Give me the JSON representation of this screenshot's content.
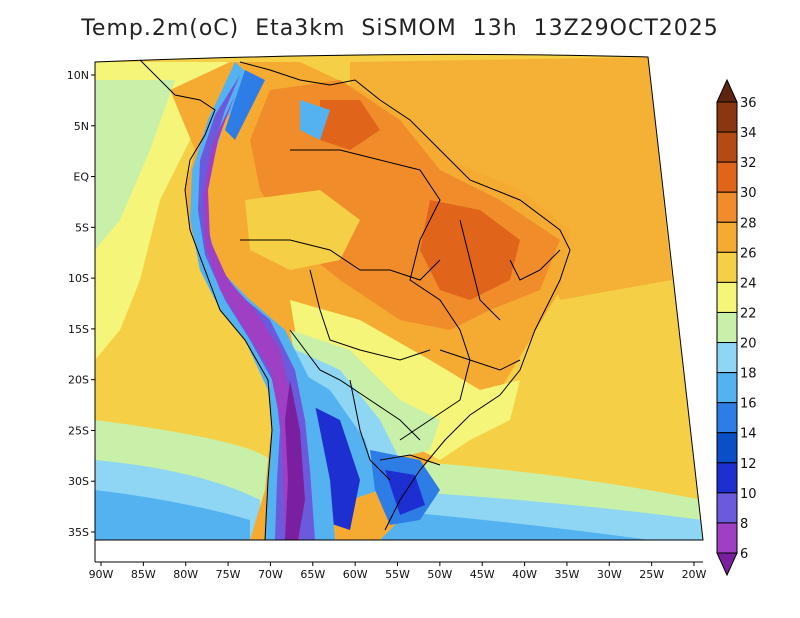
{
  "title": "Temp.2m(oC)  Eta3km  SiSMOM  13h  13Z29OCT2025",
  "chart_data": {
    "type": "heatmap",
    "variable": "Temp.2m(oC)",
    "model": "Eta3km",
    "system": "SiSMOM",
    "lead": "13h",
    "valid": "13Z29OCT2025",
    "lon_range": [
      -91,
      -20
    ],
    "lat_range": [
      -38,
      11.5
    ],
    "lon_ticks": [
      "90W",
      "85W",
      "80W",
      "75W",
      "70W",
      "65W",
      "60W",
      "55W",
      "50W",
      "45W",
      "40W",
      "35W",
      "30W",
      "25W",
      "20W"
    ],
    "lon_tick_values": [
      -90,
      -85,
      -80,
      -75,
      -70,
      -65,
      -60,
      -55,
      -50,
      -45,
      -40,
      -35,
      -30,
      -25,
      -20
    ],
    "lat_ticks": [
      "10N",
      "5N",
      "EQ",
      "5S",
      "10S",
      "15S",
      "20S",
      "25S",
      "30S",
      "35S"
    ],
    "lat_tick_values": [
      10,
      5,
      0,
      -5,
      -10,
      -15,
      -20,
      -25,
      -30,
      -35
    ],
    "colorbar": {
      "labels": [
        "6",
        "8",
        "10",
        "12",
        "14",
        "16",
        "18",
        "20",
        "22",
        "24",
        "26",
        "28",
        "30",
        "32",
        "34",
        "36"
      ],
      "levels": [
        6,
        8,
        10,
        12,
        14,
        16,
        18,
        20,
        22,
        24,
        26,
        28,
        30,
        32,
        34,
        36
      ],
      "colors": [
        "#7a1fa0",
        "#9e3fc4",
        "#6b5bdc",
        "#1d2fd0",
        "#0a4ec8",
        "#2e7de6",
        "#55b2f0",
        "#8ed6f3",
        "#c8f0a8",
        "#f5f57a",
        "#f5d046",
        "#f5ab32",
        "#f08c2a",
        "#e0641a",
        "#b44a14",
        "#8a3610",
        "#5e2410"
      ]
    }
  }
}
